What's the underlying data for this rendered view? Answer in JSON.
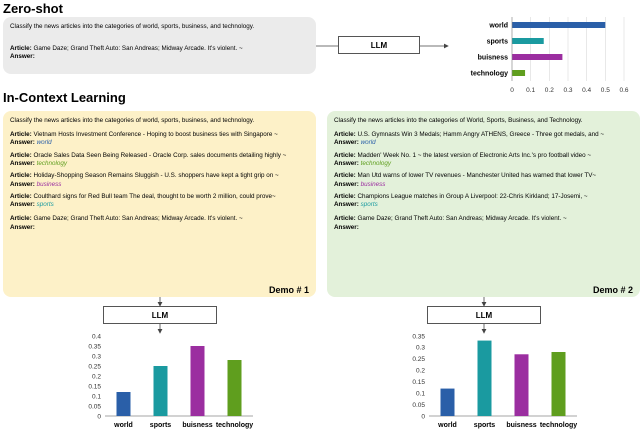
{
  "zero_shot": {
    "title": "Zero-shot",
    "prompt": {
      "instruction": "Classify the news articles into the categories of world, sports, business, and technology.",
      "query_article_label": "Article:",
      "query_article": "Game Daze; Grand Theft Auto: San Andreas; Midway Arcade. It's violent. ~",
      "query_answer_label": "Answer:"
    },
    "llm_label": "LLM",
    "colors": {
      "box_bg": "#ebebeb"
    }
  },
  "icl": {
    "title": "In-Context Learning",
    "demo1": {
      "instruction": "Classify the news articles into the categories of world, sports, business, and technology.",
      "examples": [
        {
          "article_label": "Article:",
          "article": "Vietnam Hosts Investment Conference - Hoping to boost business ties with Singapore ~",
          "answer_label": "Answer:",
          "answer": "world",
          "answer_color": "#2a5fa8"
        },
        {
          "article_label": "Article:",
          "article": "Oracle Sales Data Seen Being Released - Oracle Corp. sales documents detailing  highly ~",
          "answer_label": "Answer:",
          "answer": "technology",
          "answer_color": "#5f9e1e"
        },
        {
          "article_label": "Article:",
          "article": "Holiday-Shopping Season Remains Sluggish - U.S. shoppers have kept a tight grip on ~",
          "answer_label": "Answer:",
          "answer": "business",
          "answer_color": "#9b2ea0"
        },
        {
          "article_label": "Article:",
          "article": "Coulthard signs for Red Bull team The deal, thought to be worth 2 million, could  prove~",
          "answer_label": "Answer:",
          "answer": "sports",
          "answer_color": "#1a9aa0"
        }
      ],
      "query_article_label": "Article:",
      "query_article": "Game Daze; Grand Theft Auto: San Andreas; Midway Arcade. It's violent. ~",
      "query_answer_label": "Answer:",
      "demo_label": "Demo # 1",
      "box_color": "#fdf1c8"
    },
    "demo2": {
      "instruction": "Classify the news articles into the categories of World, Sports, Business, and Technology.",
      "examples": [
        {
          "article_label": "Article:",
          "article": "U.S. Gymnasts Win 3 Medals; Hamm Angry ATHENS, Greece - Three got medals, and ~",
          "answer_label": "Answer:",
          "answer": "world",
          "answer_color": "#2a5fa8"
        },
        {
          "article_label": "Article:",
          "article": "Madden' Week No. 1 ~ the latest version of Electronic Arts Inc.'s pro football video ~",
          "answer_label": "Answer:",
          "answer": "technology",
          "answer_color": "#5f9e1e"
        },
        {
          "article_label": "Article:",
          "article": "Man Utd warns of lower TV revenues - Manchester United has warned that lower TV~",
          "answer_label": "Answer:",
          "answer": "business",
          "answer_color": "#9b2ea0"
        },
        {
          "article_label": "Article:",
          "article": "Champions League matches in Group A Liverpool: 22-Chris Kirkland; 17-Josemi, ~",
          "answer_label": "Answer:",
          "answer": "sports",
          "answer_color": "#1a9aa0"
        }
      ],
      "query_article_label": "Article:",
      "query_article": "Game Daze; Grand Theft Auto: San Andreas; Midway Arcade. It's violent. ~",
      "query_answer_label": "Answer:",
      "demo_label": "Demo # 2",
      "box_color": "#e3f1da"
    },
    "llm_label": "LLM"
  },
  "chart_data": [
    {
      "id": "zero_shot_chart",
      "type": "bar",
      "orientation": "horizontal",
      "categories": [
        "world",
        "sports",
        "buisness",
        "technology"
      ],
      "values": [
        0.5,
        0.17,
        0.27,
        0.07
      ],
      "colors": [
        "#2a5fa8",
        "#1a9aa0",
        "#9b2ea0",
        "#5f9e1e"
      ],
      "xlim": [
        0,
        0.6
      ],
      "xticks": [
        0,
        0.1,
        0.2,
        0.3,
        0.4,
        0.5,
        0.6
      ],
      "xtick_labels": [
        "0",
        "0.1",
        "0.2",
        "0.3",
        "0.4",
        "0.5",
        "0.6"
      ],
      "grid": true
    },
    {
      "id": "demo1_chart",
      "type": "bar",
      "orientation": "vertical",
      "categories": [
        "world",
        "sports",
        "buisness",
        "technology"
      ],
      "values": [
        0.12,
        0.25,
        0.35,
        0.28
      ],
      "colors": [
        "#2a5fa8",
        "#1a9aa0",
        "#9b2ea0",
        "#5f9e1e"
      ],
      "ylim": [
        0,
        0.4
      ],
      "yticks": [
        0,
        0.05,
        0.1,
        0.15,
        0.2,
        0.25,
        0.3,
        0.35,
        0.4
      ],
      "ytick_labels": [
        "0",
        "0.05",
        "0.1",
        "0.15",
        "0.2",
        "0.25",
        "0.3",
        "0.35",
        "0.4"
      ],
      "grid": false
    },
    {
      "id": "demo2_chart",
      "type": "bar",
      "orientation": "vertical",
      "categories": [
        "world",
        "sports",
        "buisness",
        "technology"
      ],
      "values": [
        0.12,
        0.33,
        0.27,
        0.28
      ],
      "colors": [
        "#2a5fa8",
        "#1a9aa0",
        "#9b2ea0",
        "#5f9e1e"
      ],
      "ylim": [
        0,
        0.35
      ],
      "yticks": [
        0,
        0.05,
        0.1,
        0.15,
        0.2,
        0.25,
        0.3,
        0.35
      ],
      "ytick_labels": [
        "0",
        "0.05",
        "0.1",
        "0.15",
        "0.2",
        "0.25",
        "0.3",
        "0.35"
      ],
      "grid": false
    }
  ]
}
